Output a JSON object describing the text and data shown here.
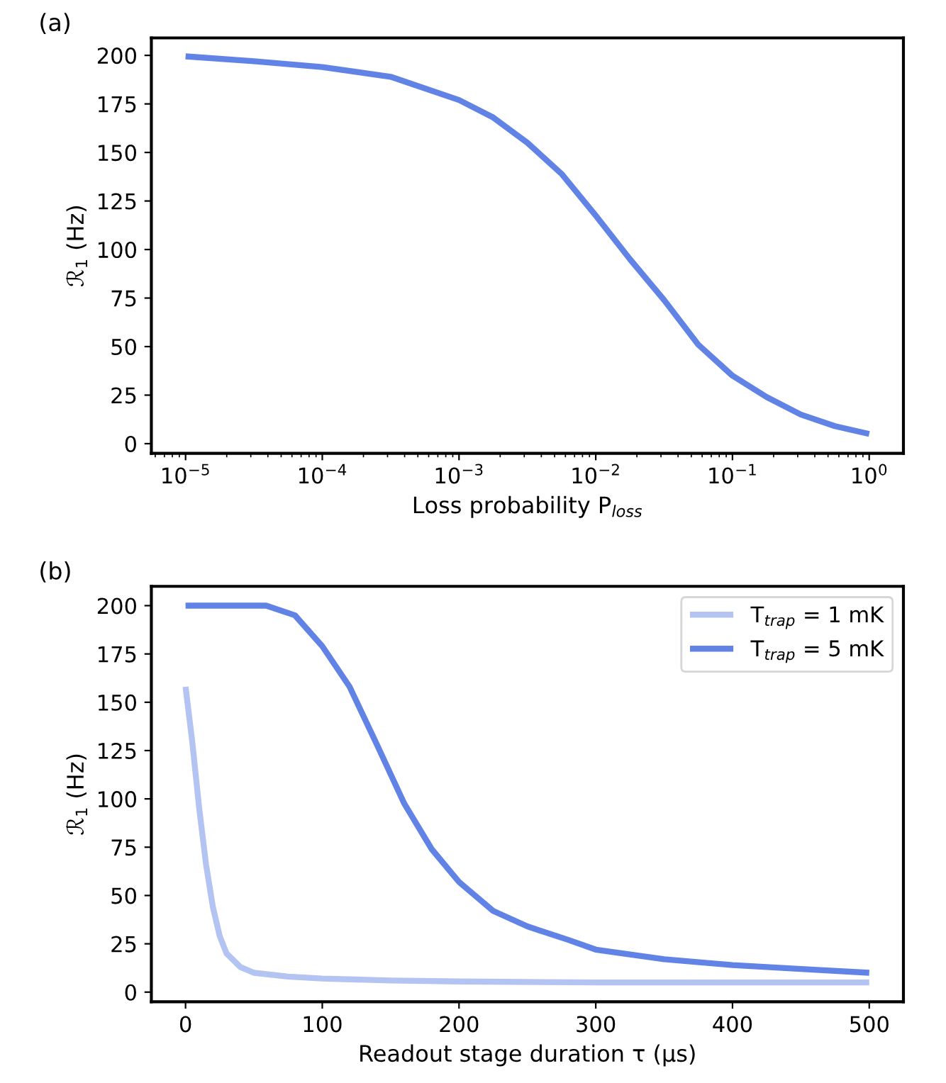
{
  "chart_data": [
    {
      "type": "line",
      "annotations": [
        "(a)"
      ],
      "xlabel": "Loss probability P$_{loss}$",
      "ylabel": "ℛ$_{1}$ (Hz)",
      "log": "x",
      "xlim": [
        5.62e-06,
        1.78
      ],
      "ylim": [
        -5,
        209
      ],
      "xticks": [
        {
          "value": 1e-05,
          "label": "10$^{−5}$"
        },
        {
          "value": 0.0001,
          "label": "10$^{−4}$"
        },
        {
          "value": 0.001,
          "label": "10$^{−3}$"
        },
        {
          "value": 0.01,
          "label": "10$^{−2}$"
        },
        {
          "value": 0.1,
          "label": "10$^{−1}$"
        },
        {
          "value": 1,
          "label": "10$^{0}$"
        }
      ],
      "yticks": [
        0,
        25,
        50,
        75,
        100,
        125,
        150,
        175,
        200
      ],
      "x": [
        1e-05,
        3.16e-05,
        0.0001,
        0.000316,
        0.001,
        0.00178,
        0.00316,
        0.00562,
        0.01,
        0.0178,
        0.0316,
        0.0562,
        0.1,
        0.178,
        0.316,
        0.562,
        1
      ],
      "series": [
        {
          "color": "#6283e6",
          "values": [
            199.5,
            197,
            194,
            189,
            177,
            168,
            155,
            139,
            117.5,
            95,
            74,
            51,
            35,
            24,
            15,
            9,
            5
          ]
        }
      ]
    },
    {
      "type": "line",
      "annotations": [
        "(b)"
      ],
      "xlabel": "Readout stage duration τ (μs)",
      "ylabel": "ℛ$_{1}$ (Hz)",
      "legend": "top right",
      "xlim": [
        -25,
        525
      ],
      "ylim": [
        -5,
        210
      ],
      "xticks": [
        0,
        100,
        200,
        300,
        400,
        500
      ],
      "yticks": [
        0,
        25,
        50,
        75,
        100,
        125,
        150,
        175,
        200
      ],
      "series": [
        {
          "name": "T$_{trap}$ = 1 mK",
          "color": "#b3c3f2",
          "x": [
            0,
            5,
            10,
            15,
            20,
            25,
            30,
            40,
            50,
            75,
            100,
            150,
            200,
            300,
            500
          ],
          "values": [
            158,
            129,
            95,
            66,
            44,
            29,
            20,
            13,
            10,
            8,
            7,
            6,
            5.5,
            5,
            5
          ]
        },
        {
          "name": "T$_{trap}$ = 5 mK",
          "color": "#6283e6",
          "x": [
            0,
            59,
            80,
            100,
            120,
            140,
            160,
            180,
            200,
            225,
            250,
            280,
            300,
            350,
            400,
            450,
            500
          ],
          "values": [
            200,
            200,
            195,
            179,
            158,
            128,
            97.5,
            74,
            57,
            42,
            34,
            27,
            22,
            17,
            14,
            12,
            10
          ]
        }
      ]
    }
  ]
}
